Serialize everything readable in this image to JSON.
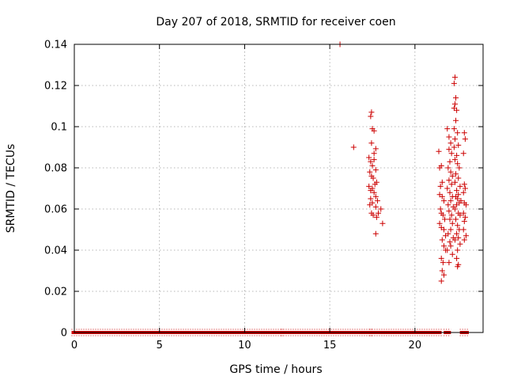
{
  "chart_data": {
    "type": "scatter",
    "title": "Day 207 of 2018, SRMTID for receiver coen",
    "xlabel": "GPS time / hours",
    "ylabel": "SRMTID / TECUs",
    "xlim": [
      0,
      24
    ],
    "ylim": [
      0,
      0.14
    ],
    "grid": true,
    "marker": "+",
    "marker_color": "#cc0000",
    "xticks": [
      {
        "value": 0,
        "label": "0"
      },
      {
        "value": 5,
        "label": "5"
      },
      {
        "value": 10,
        "label": "10"
      },
      {
        "value": 15,
        "label": "15"
      },
      {
        "value": 20,
        "label": "20"
      }
    ],
    "yticks": [
      {
        "value": 0,
        "label": "0"
      },
      {
        "value": 0.02,
        "label": "0.02"
      },
      {
        "value": 0.04,
        "label": "0.04"
      },
      {
        "value": 0.06,
        "label": "0.06"
      },
      {
        "value": 0.08,
        "label": "0.08"
      },
      {
        "value": 0.1,
        "label": "0.1"
      },
      {
        "value": 0.12,
        "label": "0.12"
      },
      {
        "value": 0.14,
        "label": "0.14"
      }
    ],
    "zero_value_segments": [
      [
        0.0,
        12.1
      ],
      [
        12.3,
        17.35
      ],
      [
        17.5,
        21.4
      ],
      [
        21.85,
        21.95
      ],
      [
        22.8,
        23.0
      ]
    ],
    "series": [
      {
        "name": "SRMTID",
        "points": [
          [
            15.6,
            0.14
          ],
          [
            16.4,
            0.09
          ],
          [
            17.4,
            0.105
          ],
          [
            17.45,
            0.107
          ],
          [
            17.5,
            0.099
          ],
          [
            17.6,
            0.098
          ],
          [
            17.7,
            0.0893
          ],
          [
            17.3,
            0.085
          ],
          [
            17.4,
            0.083
          ],
          [
            17.5,
            0.081
          ],
          [
            17.6,
            0.084
          ],
          [
            17.7,
            0.079
          ],
          [
            17.35,
            0.078
          ],
          [
            17.45,
            0.076
          ],
          [
            17.55,
            0.075
          ],
          [
            17.65,
            0.072
          ],
          [
            17.75,
            0.073
          ],
          [
            17.3,
            0.071
          ],
          [
            17.4,
            0.069
          ],
          [
            17.5,
            0.07
          ],
          [
            17.6,
            0.068
          ],
          [
            17.7,
            0.066
          ],
          [
            17.8,
            0.064
          ],
          [
            17.4,
            0.065
          ],
          [
            17.5,
            0.063
          ],
          [
            17.7,
            0.061
          ],
          [
            17.35,
            0.062
          ],
          [
            17.45,
            0.058
          ],
          [
            17.55,
            0.057
          ],
          [
            17.75,
            0.056
          ],
          [
            17.85,
            0.058
          ],
          [
            18.0,
            0.06
          ],
          [
            18.1,
            0.053
          ],
          [
            17.7,
            0.048
          ],
          [
            17.45,
            0.092
          ],
          [
            17.6,
            0.087
          ],
          [
            21.4,
            0.088
          ],
          [
            21.45,
            0.08
          ],
          [
            21.55,
            0.081
          ],
          [
            21.6,
            0.073
          ],
          [
            21.5,
            0.071
          ],
          [
            21.45,
            0.067
          ],
          [
            21.6,
            0.066
          ],
          [
            21.7,
            0.064
          ],
          [
            21.5,
            0.06
          ],
          [
            21.55,
            0.058
          ],
          [
            21.65,
            0.057
          ],
          [
            21.75,
            0.055
          ],
          [
            21.45,
            0.053
          ],
          [
            21.55,
            0.051
          ],
          [
            21.7,
            0.05
          ],
          [
            21.6,
            0.045
          ],
          [
            21.7,
            0.042
          ],
          [
            21.8,
            0.04
          ],
          [
            21.55,
            0.036
          ],
          [
            21.65,
            0.034
          ],
          [
            21.6,
            0.03
          ],
          [
            21.7,
            0.028
          ],
          [
            21.55,
            0.025
          ],
          [
            21.8,
            0.047
          ],
          [
            21.9,
            0.099
          ],
          [
            22.0,
            0.095
          ],
          [
            22.1,
            0.092
          ],
          [
            22.0,
            0.089
          ],
          [
            22.15,
            0.087
          ],
          [
            22.05,
            0.083
          ],
          [
            21.95,
            0.08
          ],
          [
            22.1,
            0.078
          ],
          [
            22.2,
            0.076
          ],
          [
            22.0,
            0.074
          ],
          [
            22.15,
            0.072
          ],
          [
            21.9,
            0.07
          ],
          [
            22.05,
            0.068
          ],
          [
            22.2,
            0.066
          ],
          [
            22.1,
            0.064
          ],
          [
            21.95,
            0.062
          ],
          [
            22.25,
            0.061
          ],
          [
            22.0,
            0.059
          ],
          [
            22.15,
            0.057
          ],
          [
            22.05,
            0.055
          ],
          [
            22.2,
            0.053
          ],
          [
            22.1,
            0.05
          ],
          [
            21.95,
            0.048
          ],
          [
            22.25,
            0.046
          ],
          [
            22.05,
            0.044
          ],
          [
            22.1,
            0.042
          ],
          [
            21.9,
            0.04
          ],
          [
            22.2,
            0.038
          ],
          [
            22.0,
            0.034
          ],
          [
            22.3,
            0.09
          ],
          [
            22.35,
            0.124
          ],
          [
            22.3,
            0.121
          ],
          [
            22.4,
            0.114
          ],
          [
            22.35,
            0.111
          ],
          [
            22.3,
            0.109
          ],
          [
            22.45,
            0.108
          ],
          [
            22.4,
            0.103
          ],
          [
            22.3,
            0.099
          ],
          [
            22.5,
            0.097
          ],
          [
            22.35,
            0.094
          ],
          [
            22.55,
            0.091
          ],
          [
            22.45,
            0.086
          ],
          [
            22.35,
            0.084
          ],
          [
            22.5,
            0.082
          ],
          [
            22.6,
            0.08
          ],
          [
            22.4,
            0.077
          ],
          [
            22.55,
            0.075
          ],
          [
            22.35,
            0.073
          ],
          [
            22.65,
            0.071
          ],
          [
            22.45,
            0.069
          ],
          [
            22.55,
            0.067
          ],
          [
            22.4,
            0.066
          ],
          [
            22.5,
            0.065
          ],
          [
            22.6,
            0.063
          ],
          [
            22.7,
            0.064
          ],
          [
            22.45,
            0.062
          ],
          [
            22.35,
            0.06
          ],
          [
            22.55,
            0.058
          ],
          [
            22.65,
            0.057
          ],
          [
            22.4,
            0.055
          ],
          [
            22.5,
            0.052
          ],
          [
            22.6,
            0.05
          ],
          [
            22.45,
            0.048
          ],
          [
            22.55,
            0.046
          ],
          [
            22.35,
            0.045
          ],
          [
            22.65,
            0.043
          ],
          [
            22.5,
            0.04
          ],
          [
            22.45,
            0.036
          ],
          [
            22.55,
            0.033
          ],
          [
            22.5,
            0.032
          ],
          [
            22.9,
            0.097
          ],
          [
            22.95,
            0.094
          ],
          [
            22.85,
            0.087
          ],
          [
            22.9,
            0.072
          ],
          [
            22.95,
            0.07
          ],
          [
            22.85,
            0.068
          ],
          [
            22.9,
            0.063
          ],
          [
            23.0,
            0.062
          ],
          [
            22.85,
            0.058
          ],
          [
            22.95,
            0.056
          ],
          [
            22.9,
            0.054
          ],
          [
            22.85,
            0.05
          ],
          [
            23.0,
            0.047
          ],
          [
            22.9,
            0.045
          ]
        ]
      }
    ]
  }
}
